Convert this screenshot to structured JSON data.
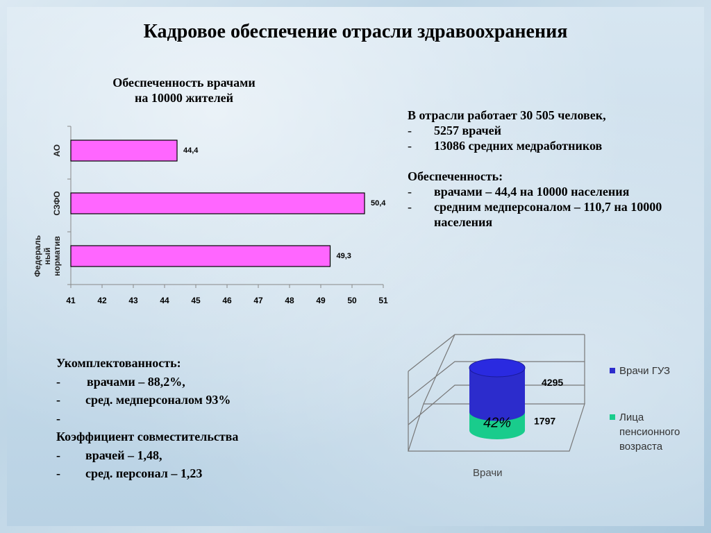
{
  "title": "Кадровое обеспечение отрасли здравоохранения",
  "bar_title_line1": "Обеспеченность врачами",
  "bar_title_line2": "на 10000 жителей",
  "info": {
    "line1": "В отрасли работает 30 505 человек,",
    "items1": [
      "5257 врачей",
      "13086 средних медработников"
    ],
    "heading2": "Обеспеченность:",
    "items2": [
      "врачами – 44,4 на 10000 населения",
      "средним медперсоналом – 110,7 на 10000 населения"
    ]
  },
  "staff": {
    "heading": "Укомплектованность:",
    "item1": "врачами – 88,2%,",
    "item2": "сред. медперсоналом 93%",
    "heading2": "Коэффициент совместительства",
    "item3": "врачей – 1,48,",
    "item4": "сред. персонал – 1,23"
  },
  "chart_data": [
    {
      "type": "bar",
      "orientation": "horizontal",
      "categories": [
        "АО",
        "СЗФО",
        "Федераль ный норматив"
      ],
      "values": [
        44.4,
        50.4,
        49.3
      ],
      "value_labels": [
        "44,4",
        "50,4",
        "49,3"
      ],
      "xlim": [
        41,
        51
      ],
      "xticks": [
        "41",
        "42",
        "43",
        "44",
        "45",
        "46",
        "47",
        "48",
        "49",
        "50",
        "51"
      ],
      "color": "#ff66ff"
    },
    {
      "type": "bar",
      "style": "3d-stacked-cylinder",
      "categories": [
        "Врачи"
      ],
      "series": [
        {
          "name": "Врачи ГУЗ",
          "values": [
            4295
          ],
          "color": "#2c2ccc"
        },
        {
          "name": "Лица пенсионного возраста",
          "values": [
            1797
          ],
          "color": "#19cc8c"
        }
      ],
      "annotation": "42%",
      "value_labels": [
        "4295",
        "1797"
      ]
    }
  ]
}
